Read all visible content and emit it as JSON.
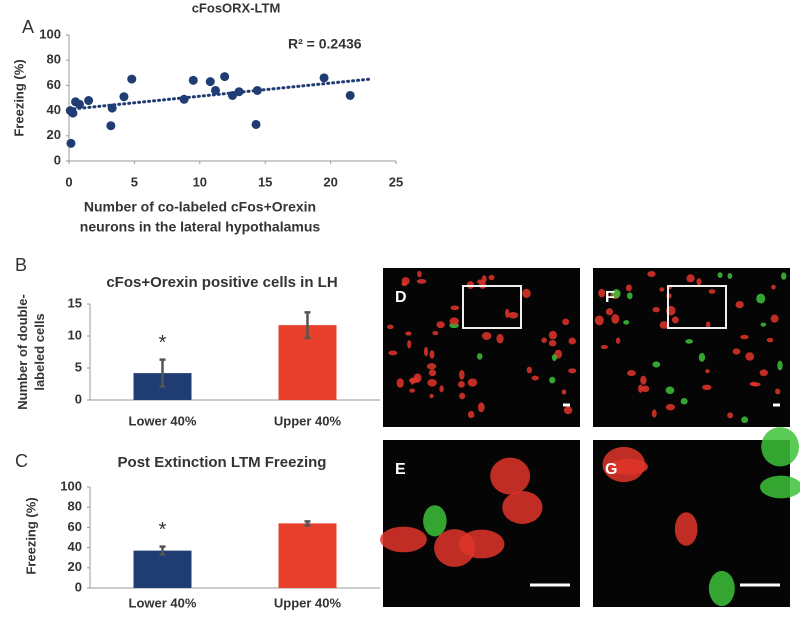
{
  "chart_data": [
    {
      "type": "scatter",
      "panel_label": "A",
      "title": "cFosORX-LTM",
      "x_label": [
        "Number of co-labeled cFos+Orexin",
        "neurons in the lateral hypothalamus"
      ],
      "y_label": "Freezing (%)",
      "annotation": "R² = 0.2436",
      "x": [
        0.15,
        0.1,
        0.3,
        0.5,
        0.8,
        1.5,
        3.3,
        3.2,
        4.2,
        4.8,
        8.8,
        9.5,
        10.8,
        11.2,
        11.9,
        12.5,
        13,
        14.3,
        14.4,
        19.5,
        21.5
      ],
      "values": [
        14,
        40,
        38,
        47,
        45,
        48,
        42,
        28,
        51,
        65,
        49,
        64,
        63,
        56,
        67,
        52,
        55,
        29,
        56,
        66,
        52
      ],
      "color": "#1f3c73",
      "trendline": {
        "x": [
          0,
          23
        ],
        "y": [
          41,
          65
        ]
      },
      "xlim": [
        0,
        25
      ],
      "xticks": [
        0,
        5,
        10,
        15,
        20,
        25
      ],
      "ylim": [
        0,
        100
      ],
      "yticks": [
        0,
        20,
        40,
        60,
        80,
        100
      ]
    },
    {
      "type": "bar",
      "panel_label": "B",
      "title": "cFos+Orexin positive cells in LH",
      "y_label": [
        "Number of double-",
        "labeled cells"
      ],
      "categories": [
        "Lower 40%",
        "Upper 40%"
      ],
      "values": [
        4.2,
        11.7
      ],
      "errors": [
        2.1,
        2.0
      ],
      "colors": [
        "#1f3c73",
        "#e8402d"
      ],
      "annotations": [
        "*",
        null
      ],
      "ylim": [
        0,
        15
      ],
      "yticks": [
        0,
        5,
        10,
        15
      ]
    },
    {
      "type": "bar",
      "panel_label": "C",
      "title": "Post Extinction LTM  Freezing",
      "y_label": [
        "Freezing (%)"
      ],
      "categories": [
        "Lower 40%",
        "Upper 40%"
      ],
      "values": [
        37,
        64
      ],
      "errors": [
        4,
        2
      ],
      "colors": [
        "#1f3c73",
        "#e8402d"
      ],
      "annotations": [
        "*",
        null
      ],
      "ylim": [
        0,
        100
      ],
      "yticks": [
        0,
        20,
        40,
        60,
        80,
        100
      ]
    }
  ],
  "images": {
    "labels": [
      "D",
      "F",
      "E",
      "G"
    ]
  }
}
